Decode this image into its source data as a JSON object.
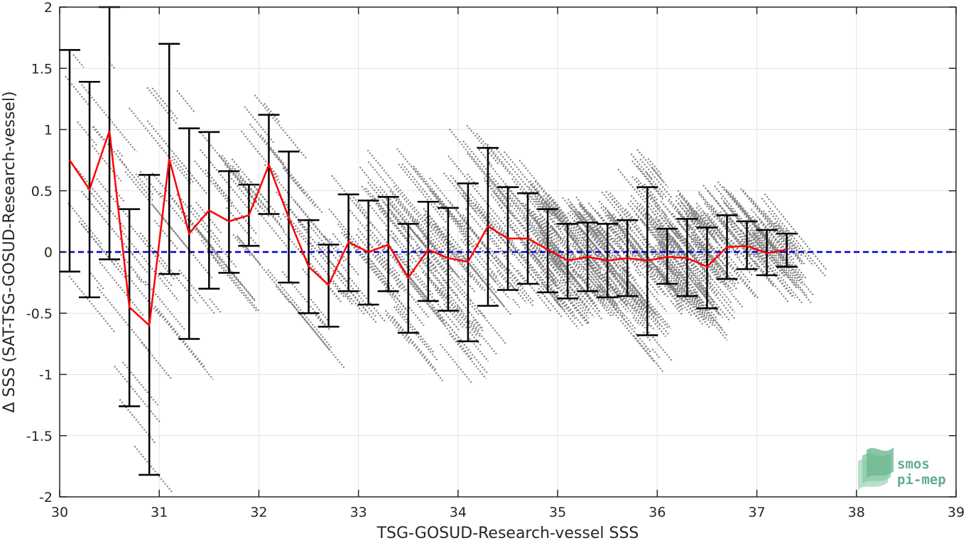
{
  "chart_data": {
    "type": "scatter",
    "xlabel": "TSG-GOSUD-Research-vessel SSS",
    "ylabel": "Δ SSS (SAT-TSG-GOSUD-Research-vessel)",
    "xlim": [
      30,
      39
    ],
    "ylim": [
      -2,
      2
    ],
    "x_ticks": [
      30,
      31,
      32,
      33,
      34,
      35,
      36,
      37,
      38,
      39
    ],
    "y_ticks": [
      -2,
      -1.5,
      -1,
      -0.5,
      0,
      0.5,
      1,
      1.5,
      2
    ],
    "x_tick_labels": [
      "30",
      "31",
      "32",
      "33",
      "34",
      "35",
      "36",
      "37",
      "38",
      "39"
    ],
    "y_tick_labels": [
      "-2",
      "-1.5",
      "-1",
      "-0.5",
      "0",
      "0.5",
      "1",
      "1.5",
      "2"
    ],
    "grid": true,
    "colors": {
      "scatter": "#808080",
      "mean_line": "#ff0000",
      "error_bars": "#000000",
      "zero_line": "#0000cc",
      "grid": "#e3e3e3",
      "axes": "#262626"
    },
    "reference_line": {
      "y": 0,
      "style": "dashed"
    },
    "binned": {
      "x": [
        30.1,
        30.3,
        30.5,
        30.7,
        30.9,
        31.1,
        31.3,
        31.5,
        31.7,
        31.9,
        32.1,
        32.3,
        32.5,
        32.7,
        32.9,
        33.1,
        33.3,
        33.5,
        33.7,
        33.9,
        34.1,
        34.3,
        34.5,
        34.7,
        34.9,
        35.1,
        35.3,
        35.5,
        35.7,
        35.9,
        36.1,
        36.3,
        36.5,
        36.7,
        36.9,
        37.1,
        37.3
      ],
      "mean": [
        0.75,
        0.51,
        0.99,
        -0.45,
        -0.6,
        0.76,
        0.15,
        0.34,
        0.25,
        0.3,
        0.71,
        0.28,
        -0.12,
        -0.27,
        0.08,
        0.0,
        0.06,
        -0.21,
        0.02,
        -0.05,
        -0.08,
        0.21,
        0.11,
        0.11,
        0.02,
        -0.07,
        -0.04,
        -0.07,
        -0.05,
        -0.07,
        -0.04,
        -0.05,
        -0.12,
        0.04,
        0.05,
        -0.01,
        0.02
      ],
      "err_low": [
        -0.16,
        -0.37,
        -0.06,
        -1.26,
        -1.82,
        -0.18,
        -0.71,
        -0.3,
        -0.17,
        0.05,
        0.31,
        -0.25,
        -0.5,
        -0.61,
        -0.32,
        -0.43,
        -0.32,
        -0.66,
        -0.4,
        -0.48,
        -0.73,
        -0.44,
        -0.31,
        -0.26,
        -0.33,
        -0.38,
        -0.32,
        -0.37,
        -0.36,
        -0.68,
        -0.26,
        -0.36,
        -0.46,
        -0.22,
        -0.14,
        -0.19,
        -0.12
      ],
      "err_high": [
        1.65,
        1.39,
        2.0,
        0.35,
        0.63,
        1.7,
        1.01,
        0.98,
        0.66,
        0.55,
        1.12,
        0.82,
        0.26,
        0.06,
        0.47,
        0.42,
        0.45,
        0.23,
        0.41,
        0.36,
        0.56,
        0.85,
        0.53,
        0.48,
        0.35,
        0.23,
        0.24,
        0.23,
        0.26,
        0.53,
        0.19,
        0.27,
        0.2,
        0.3,
        0.25,
        0.18,
        0.15
      ]
    },
    "logo": {
      "line1": "smos",
      "line2": "pi-mep"
    }
  }
}
